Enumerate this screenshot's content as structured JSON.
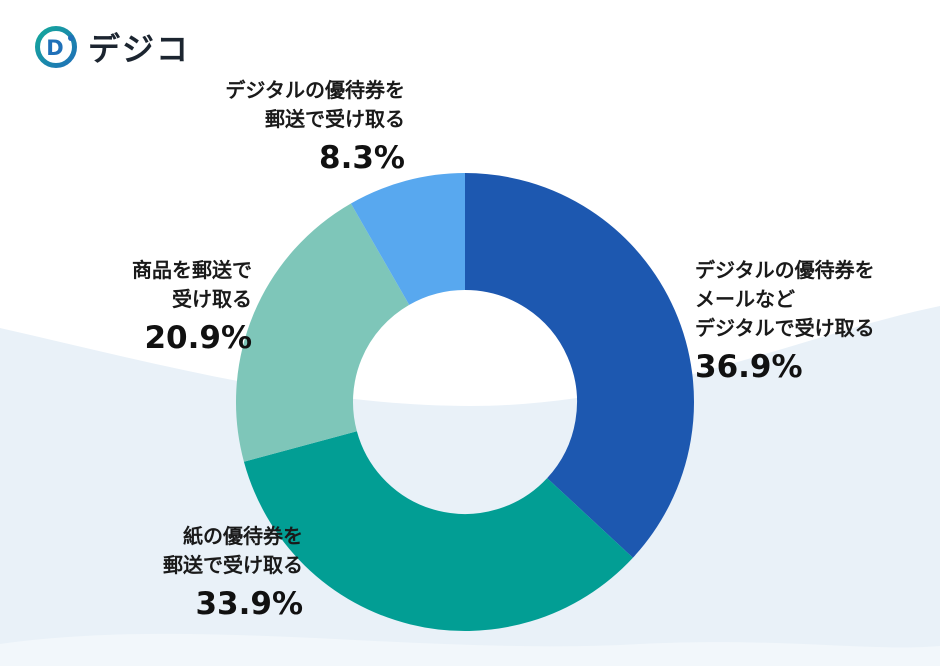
{
  "logo": {
    "brand": "デジコ"
  },
  "colors": {
    "wave": "#e9f1f8",
    "wave_light": "#f2f7fb",
    "background": "#ffffff"
  },
  "chart_data": {
    "type": "pie",
    "donut": true,
    "title": "",
    "unit": "%",
    "direction": "clockwise",
    "start_angle": "top",
    "categories": [
      "デジタルの優待券をメールなどデジタルで受け取る",
      "紙の優待券を郵送で受け取る",
      "商品を郵送で受け取る",
      "デジタルの優待券を郵送で受け取る"
    ],
    "values": [
      36.9,
      33.9,
      20.9,
      8.3
    ],
    "colors": [
      "#1d58b0",
      "#029e94",
      "#7ec6b9",
      "#58a8ef"
    ]
  },
  "labels": {
    "digital_email": {
      "lines": [
        "デジタルの優待券を",
        "メールなど",
        "デジタルで受け取る"
      ],
      "pct": "36.9%"
    },
    "paper_mail": {
      "lines": [
        "紙の優待券を",
        "郵送で受け取る"
      ],
      "pct": "33.9%"
    },
    "product_mail": {
      "lines": [
        "商品を郵送で",
        "受け取る"
      ],
      "pct": "20.9%"
    },
    "digital_mail": {
      "lines": [
        "デジタルの優待券を",
        "郵送で受け取る"
      ],
      "pct": "8.3%"
    }
  }
}
